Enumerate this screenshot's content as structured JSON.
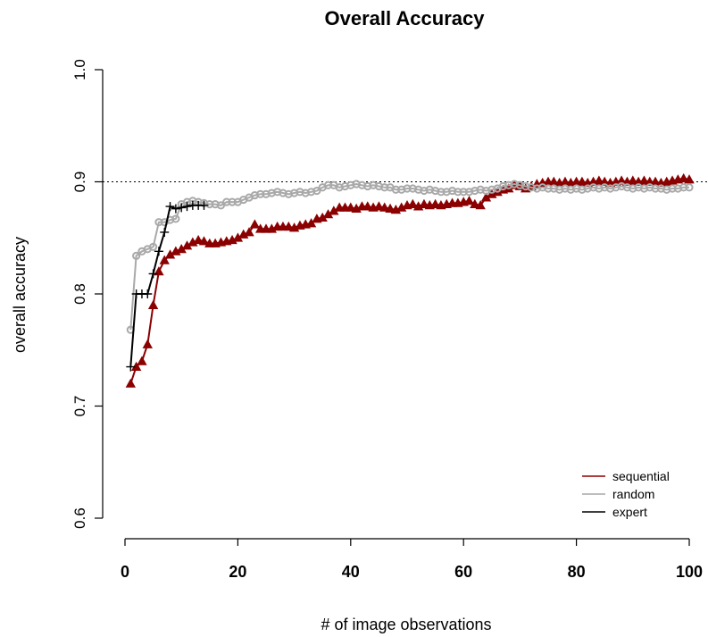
{
  "chart_data": {
    "type": "line",
    "title": "Overall Accuracy",
    "xlabel": "# of image observations",
    "ylabel": "overall accuracy",
    "xlim": [
      0,
      100
    ],
    "ylim": [
      0.6,
      1.0
    ],
    "xticks": [
      0,
      20,
      40,
      60,
      80,
      100
    ],
    "yticks": [
      0.6,
      0.7,
      0.8,
      0.9,
      1.0
    ],
    "xtick_labels": [
      "0",
      "20",
      "40",
      "60",
      "80",
      "100"
    ],
    "ytick_labels": [
      "0.6",
      "0.7",
      "0.8",
      "0.9",
      "1.0"
    ],
    "reference_line": {
      "y": 0.9,
      "style": "dotted"
    },
    "grid": false,
    "legend_position": "bottom-right",
    "series": [
      {
        "name": "sequential",
        "color": "#8b0000",
        "marker": "filled-triangle",
        "x": [
          1,
          2,
          3,
          4,
          5,
          6,
          7,
          8,
          9,
          10,
          11,
          12,
          13,
          14,
          15,
          16,
          17,
          18,
          19,
          20,
          21,
          22,
          23,
          24,
          25,
          26,
          27,
          28,
          29,
          30,
          31,
          32,
          33,
          34,
          35,
          36,
          37,
          38,
          39,
          40,
          41,
          42,
          43,
          44,
          45,
          46,
          47,
          48,
          49,
          50,
          51,
          52,
          53,
          54,
          55,
          56,
          57,
          58,
          59,
          60,
          61,
          62,
          63,
          64,
          65,
          66,
          67,
          68,
          69,
          70,
          71,
          72,
          73,
          74,
          75,
          76,
          77,
          78,
          79,
          80,
          81,
          82,
          83,
          84,
          85,
          86,
          87,
          88,
          89,
          90,
          91,
          92,
          93,
          94,
          95,
          96,
          97,
          98,
          99,
          100
        ],
        "values": [
          0.72,
          0.735,
          0.74,
          0.755,
          0.79,
          0.82,
          0.83,
          0.835,
          0.838,
          0.84,
          0.843,
          0.846,
          0.848,
          0.847,
          0.845,
          0.845,
          0.846,
          0.847,
          0.848,
          0.85,
          0.853,
          0.855,
          0.862,
          0.858,
          0.858,
          0.858,
          0.86,
          0.86,
          0.86,
          0.859,
          0.861,
          0.862,
          0.863,
          0.867,
          0.868,
          0.871,
          0.874,
          0.877,
          0.877,
          0.877,
          0.876,
          0.878,
          0.878,
          0.877,
          0.878,
          0.877,
          0.876,
          0.875,
          0.877,
          0.879,
          0.88,
          0.878,
          0.88,
          0.879,
          0.88,
          0.879,
          0.88,
          0.881,
          0.881,
          0.882,
          0.883,
          0.88,
          0.879,
          0.886,
          0.889,
          0.891,
          0.893,
          0.894,
          0.897,
          0.896,
          0.894,
          0.896,
          0.898,
          0.899,
          0.9,
          0.9,
          0.899,
          0.9,
          0.899,
          0.9,
          0.9,
          0.899,
          0.9,
          0.901,
          0.9,
          0.899,
          0.9,
          0.901,
          0.9,
          0.901,
          0.9,
          0.901,
          0.9,
          0.9,
          0.899,
          0.9,
          0.901,
          0.902,
          0.903,
          0.902
        ]
      },
      {
        "name": "random",
        "color": "#a9a9a9",
        "marker": "open-circle",
        "x": [
          1,
          2,
          3,
          4,
          5,
          6,
          7,
          8,
          9,
          10,
          11,
          12,
          13,
          14,
          15,
          16,
          17,
          18,
          19,
          20,
          21,
          22,
          23,
          24,
          25,
          26,
          27,
          28,
          29,
          30,
          31,
          32,
          33,
          34,
          35,
          36,
          37,
          38,
          39,
          40,
          41,
          42,
          43,
          44,
          45,
          46,
          47,
          48,
          49,
          50,
          51,
          52,
          53,
          54,
          55,
          56,
          57,
          58,
          59,
          60,
          61,
          62,
          63,
          64,
          65,
          66,
          67,
          68,
          69,
          70,
          71,
          72,
          73,
          74,
          75,
          76,
          77,
          78,
          79,
          80,
          81,
          82,
          83,
          84,
          85,
          86,
          87,
          88,
          89,
          90,
          91,
          92,
          93,
          94,
          95,
          96,
          97,
          98,
          99,
          100
        ],
        "values": [
          0.768,
          0.834,
          0.838,
          0.84,
          0.842,
          0.864,
          0.864,
          0.866,
          0.867,
          0.88,
          0.882,
          0.883,
          0.882,
          0.881,
          0.88,
          0.88,
          0.879,
          0.882,
          0.882,
          0.882,
          0.884,
          0.886,
          0.888,
          0.889,
          0.889,
          0.89,
          0.891,
          0.89,
          0.889,
          0.89,
          0.891,
          0.89,
          0.891,
          0.892,
          0.895,
          0.897,
          0.897,
          0.895,
          0.896,
          0.897,
          0.898,
          0.897,
          0.896,
          0.897,
          0.896,
          0.895,
          0.895,
          0.893,
          0.893,
          0.894,
          0.894,
          0.893,
          0.892,
          0.893,
          0.892,
          0.891,
          0.891,
          0.892,
          0.891,
          0.891,
          0.891,
          0.892,
          0.893,
          0.892,
          0.893,
          0.894,
          0.896,
          0.897,
          0.898,
          0.897,
          0.896,
          0.895,
          0.894,
          0.895,
          0.894,
          0.894,
          0.893,
          0.894,
          0.893,
          0.894,
          0.893,
          0.894,
          0.895,
          0.894,
          0.895,
          0.894,
          0.895,
          0.896,
          0.895,
          0.894,
          0.895,
          0.894,
          0.895,
          0.894,
          0.894,
          0.893,
          0.894,
          0.894,
          0.895,
          0.895
        ]
      },
      {
        "name": "expert",
        "color": "#000000",
        "marker": "plus",
        "x": [
          1,
          2,
          3,
          4,
          5,
          6,
          7,
          8,
          9,
          10,
          11,
          12,
          13,
          14
        ],
        "values": [
          0.735,
          0.8,
          0.8,
          0.8,
          0.818,
          0.838,
          0.855,
          0.878,
          0.876,
          0.877,
          0.878,
          0.879,
          0.879,
          0.879
        ]
      }
    ]
  }
}
